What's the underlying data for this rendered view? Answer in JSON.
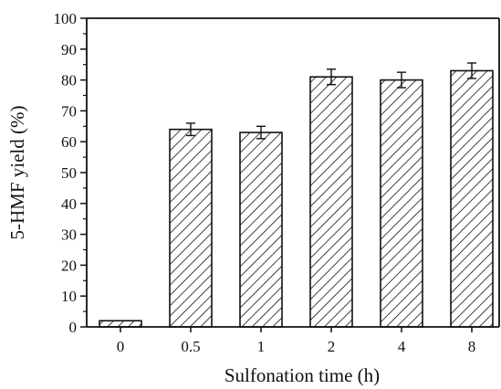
{
  "chart_data": {
    "type": "bar",
    "title": "",
    "xlabel": "Sulfonation time (h)",
    "ylabel": "5-HMF yield (%)",
    "categories": [
      "0",
      "0.5",
      "1",
      "2",
      "4",
      "8"
    ],
    "values": [
      2,
      64,
      63,
      81,
      80,
      83
    ],
    "errors": [
      0,
      2,
      2,
      2.5,
      2.5,
      2.5
    ],
    "ylim": [
      0,
      100
    ],
    "yticks": [
      0,
      10,
      20,
      30,
      40,
      50,
      60,
      70,
      80,
      90,
      100
    ],
    "grid": false,
    "legend": "none",
    "bar_fill": "diagonal-hatch",
    "colors": {
      "bar_edge": "#111111",
      "hatch": "#111111",
      "axis": "#111111",
      "background": "#ffffff"
    }
  }
}
